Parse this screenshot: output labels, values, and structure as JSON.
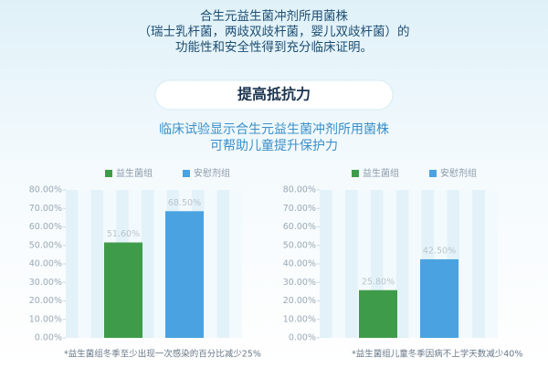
{
  "header": {
    "lines": [
      "合生元益生菌冲剂所用菌株",
      "（瑞士乳杆菌，两歧双歧杆菌，婴儿双歧杆菌）的",
      "功能性和安全性得到充分临床证明。"
    ],
    "heading": "提高抵抗力",
    "subtitle": [
      "临床试验显示合生元益生菌冲剂所用菌株",
      "可帮助儿童提升保护力"
    ]
  },
  "chart_data": [
    {
      "type": "bar",
      "note": "*益生菌组冬季至少出现一次感染的百分比减少25%",
      "ylim": [
        0,
        80
      ],
      "yticks": [
        {
          "value": 0,
          "label": "0.00%"
        },
        {
          "value": 10,
          "label": "10.00%"
        },
        {
          "value": 20,
          "label": "20.00%"
        },
        {
          "value": 30,
          "label": "30.00%"
        },
        {
          "value": 40,
          "label": "40.00%"
        },
        {
          "value": 50,
          "label": "50.00%"
        },
        {
          "value": 60,
          "label": "60.00%"
        },
        {
          "value": 70,
          "label": "70.00%"
        },
        {
          "value": 80,
          "label": "80.00%"
        }
      ],
      "series": [
        {
          "name": "益生菌组",
          "color": "#3e9b4a",
          "values": [
            51.6
          ],
          "value_labels": [
            "51.60%"
          ]
        },
        {
          "name": "安慰剂组",
          "color": "#4aa3e0",
          "values": [
            68.5
          ],
          "value_labels": [
            "68.50%"
          ]
        }
      ]
    },
    {
      "type": "bar",
      "note": "*益生菌组儿童冬季因病不上学天数减少40%",
      "ylim": [
        0,
        80
      ],
      "yticks": [
        {
          "value": 0,
          "label": "0.00%"
        },
        {
          "value": 10,
          "label": "10.00%"
        },
        {
          "value": 20,
          "label": "20.00%"
        },
        {
          "value": 30,
          "label": "30.00%"
        },
        {
          "value": 40,
          "label": "40.00%"
        },
        {
          "value": 50,
          "label": "50.00%"
        },
        {
          "value": 60,
          "label": "60.00%"
        },
        {
          "value": 70,
          "label": "70.00%"
        },
        {
          "value": 80,
          "label": "80.00%"
        }
      ],
      "series": [
        {
          "name": "益生菌组",
          "color": "#3e9b4a",
          "values": [
            25.8
          ],
          "value_labels": [
            "25.80%"
          ]
        },
        {
          "name": "安慰剂组",
          "color": "#4aa3e0",
          "values": [
            42.5
          ],
          "value_labels": [
            "42.50%"
          ]
        }
      ]
    }
  ]
}
